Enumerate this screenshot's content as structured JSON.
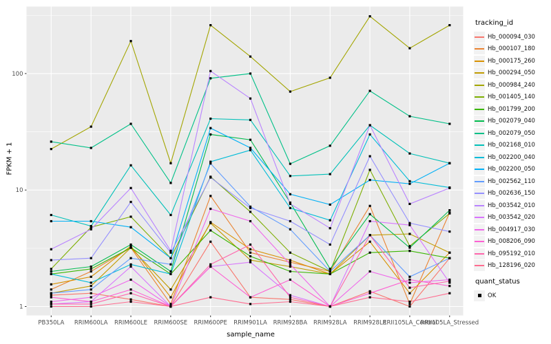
{
  "chart_data": {
    "type": "line",
    "title": "",
    "xlabel": "sample_name",
    "ylabel": "FPKM + 1",
    "y_scale": "log10",
    "y_ticks": [
      1,
      10,
      100
    ],
    "y_minor_ticks": [
      3.162,
      31.62,
      316.2
    ],
    "ylim_log": [
      -0.08,
      2.57
    ],
    "grid": "on",
    "legend_position": "right",
    "point_shape": "filled-square",
    "point_color": "#000000",
    "panel_bg": "#EBEBEB",
    "grid_color": "#FFFFFF",
    "tick_text_color": "#4D4D4D",
    "categories": [
      "PB350LA",
      "RRIM600LA",
      "RRIM600LE",
      "RRIM600SE",
      "RRIM600PE",
      "RRIM901LA",
      "RRIM928BA",
      "RRIM928LA",
      "RRIM928LE",
      "RRII105LA_Control",
      "RRII105LA_Stressed"
    ],
    "series": [
      {
        "name": "Hb_000094_030",
        "color": "#F8766D",
        "values": [
          1.25,
          1.3,
          1.15,
          1.0,
          3.6,
          1.2,
          1.15,
          1.0,
          1.35,
          1.0,
          2.6
        ]
      },
      {
        "name": "Hb_000107_180",
        "color": "#EA8331",
        "values": [
          1.4,
          2.0,
          3.2,
          1.05,
          8.9,
          2.9,
          2.4,
          2.0,
          7.3,
          1.05,
          6.4
        ]
      },
      {
        "name": "Hb_000175_260",
        "color": "#D89000",
        "values": [
          1.55,
          1.8,
          3.3,
          1.2,
          5.3,
          3.1,
          2.5,
          1.9,
          3.6,
          1.3,
          2.9
        ]
      },
      {
        "name": "Hb_000294_050",
        "color": "#C09B00",
        "values": [
          1.3,
          1.5,
          3.2,
          1.4,
          5.2,
          2.5,
          2.2,
          1.9,
          4.1,
          4.2,
          2.9
        ]
      },
      {
        "name": "Hb_000984_240",
        "color": "#A3A500",
        "values": [
          22.5,
          35,
          190,
          17,
          260,
          140,
          70,
          92,
          310,
          165,
          260
        ]
      },
      {
        "name": "Hb_001405_140",
        "color": "#7CAE00",
        "values": [
          2.1,
          4.8,
          5.9,
          2.6,
          13,
          6.5,
          2.9,
          2.0,
          14.9,
          3.3,
          6.3
        ]
      },
      {
        "name": "Hb_001799_200",
        "color": "#39B600",
        "values": [
          1.9,
          2.1,
          3.2,
          1.9,
          4.5,
          2.7,
          2.0,
          1.9,
          2.9,
          3.0,
          2.6
        ]
      },
      {
        "name": "Hb_002079_040",
        "color": "#00BB4E",
        "values": [
          2.0,
          2.2,
          3.4,
          2.0,
          30,
          27,
          7.8,
          2.1,
          6.2,
          3.2,
          6.7
        ]
      },
      {
        "name": "Hb_002079_050",
        "color": "#00C087",
        "values": [
          26,
          23,
          37,
          11.5,
          91,
          100,
          16.8,
          24,
          71,
          43,
          37
        ]
      },
      {
        "name": "Hb_002168_010",
        "color": "#00C0B8",
        "values": [
          6.1,
          4.9,
          16.3,
          6.1,
          41,
          40,
          13.2,
          13.7,
          36,
          20.6,
          17
        ]
      },
      {
        "name": "Hb_002200_040",
        "color": "#00BCD8",
        "values": [
          1.9,
          1.6,
          2.3,
          1.9,
          17.5,
          22,
          7.0,
          5.5,
          30,
          11.9,
          10.5
        ]
      },
      {
        "name": "Hb_002200_050",
        "color": "#00B0F6",
        "values": [
          5.4,
          5.4,
          4.8,
          2.6,
          34,
          23,
          9.2,
          7.5,
          12.2,
          11.3,
          17
        ]
      },
      {
        "name": "Hb_002562_110",
        "color": "#619CFF",
        "values": [
          1.3,
          1.4,
          2.6,
          2.3,
          16.9,
          7.2,
          4.6,
          2.0,
          4.1,
          1.8,
          2.6
        ]
      },
      {
        "name": "Hb_002636_150",
        "color": "#9590FF",
        "values": [
          2.5,
          2.6,
          7.9,
          2.9,
          12.8,
          7.0,
          5.4,
          3.4,
          19.5,
          5.2,
          4.4
        ]
      },
      {
        "name": "Hb_003542_010",
        "color": "#B983FF",
        "values": [
          3.1,
          4.6,
          10.4,
          3.0,
          105,
          61,
          7.6,
          4.7,
          36,
          7.6,
          10.4
        ]
      },
      {
        "name": "Hb_003542_020",
        "color": "#D874FD",
        "values": [
          1.05,
          1.1,
          2.2,
          1.0,
          2.2,
          2.4,
          1.25,
          1.0,
          5.4,
          5.0,
          1.6
        ]
      },
      {
        "name": "Hb_004917_030",
        "color": "#EF67EB",
        "values": [
          1.1,
          1.2,
          1.7,
          1.0,
          6.9,
          5.4,
          2.3,
          1.0,
          2.0,
          1.6,
          1.7
        ]
      },
      {
        "name": "Hb_008206_090",
        "color": "#FD61D3",
        "values": [
          1.2,
          1.1,
          1.4,
          1.0,
          2.2,
          1.2,
          1.7,
          1.0,
          1.3,
          1.7,
          1.5
        ]
      },
      {
        "name": "Hb_095192_010",
        "color": "#FF65AC",
        "values": [
          1.05,
          1.05,
          1.3,
          1.0,
          2.3,
          3.4,
          1.2,
          1.0,
          4.1,
          1.45,
          1.65
        ]
      },
      {
        "name": "Hb_128196_020",
        "color": "#FF6C90",
        "values": [
          1.0,
          1.0,
          1.1,
          1.0,
          1.2,
          1.05,
          1.1,
          1.0,
          1.2,
          1.1,
          1.3
        ]
      }
    ]
  },
  "legend": {
    "tracking_title": "tracking_id",
    "quant_title": "quant_status",
    "quant_entries": [
      {
        "label": "OK",
        "shape": "filled-square",
        "color": "#000000"
      }
    ]
  },
  "axes": {
    "x_title": "sample_name",
    "y_title": "FPKM + 1",
    "y_tick_labels": [
      "100",
      "10",
      "1"
    ]
  }
}
